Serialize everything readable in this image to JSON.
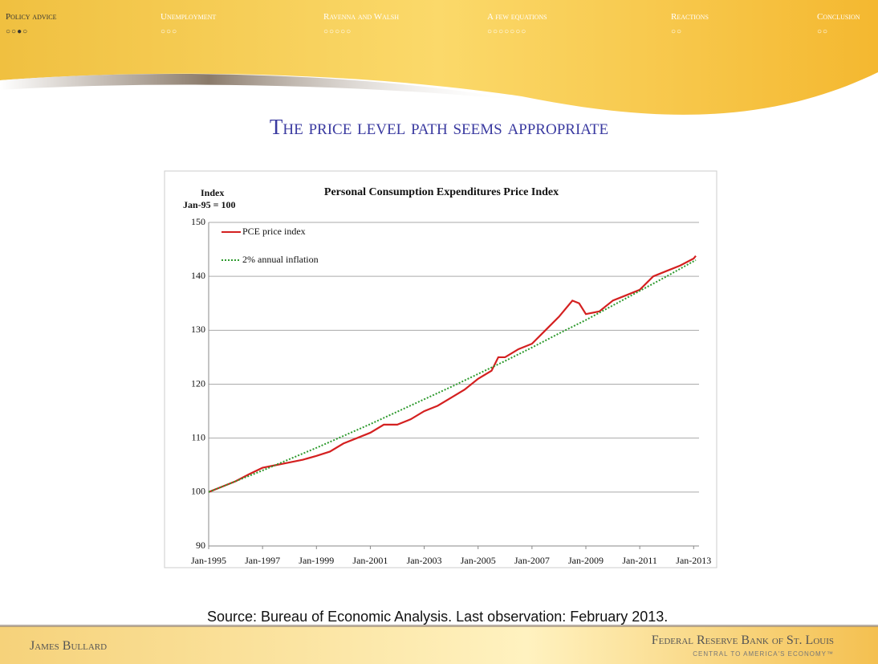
{
  "nav": [
    "Policy advice",
    "Unemployment",
    "Ravenna and Walsh",
    "A few equations",
    "Reactions",
    "Conclusion"
  ],
  "slide_title": "The price level path seems appropriate",
  "source": "Source: Bureau of Economic Analysis. Last observation: February 2013.",
  "footer": {
    "author": "James Bullard",
    "org": "Federal Reserve Bank of St. Louis",
    "tagline": "Central to America's Economy™"
  },
  "chart_data": {
    "type": "line",
    "title": "Personal Consumption Expenditures Price Index",
    "ylabel": [
      "Index",
      "Jan-95 = 100"
    ],
    "xlim": [
      1995,
      2013.2
    ],
    "ylim": [
      90,
      150
    ],
    "yticks": [
      90,
      100,
      110,
      120,
      130,
      140,
      150
    ],
    "xticks": [
      {
        "value": 1995,
        "label": "Jan-1995"
      },
      {
        "value": 1997,
        "label": "Jan-1997"
      },
      {
        "value": 1999,
        "label": "Jan-1999"
      },
      {
        "value": 2001,
        "label": "Jan-2001"
      },
      {
        "value": 2003,
        "label": "Jan-2003"
      },
      {
        "value": 2005,
        "label": "Jan-2005"
      },
      {
        "value": 2007,
        "label": "Jan-2007"
      },
      {
        "value": 2009,
        "label": "Jan-2009"
      },
      {
        "value": 2011,
        "label": "Jan-2011"
      },
      {
        "value": 2013,
        "label": "Jan-2013"
      }
    ],
    "grid": true,
    "series": [
      {
        "name": "PCE price index",
        "color": "#d42020",
        "dash": false,
        "x": [
          1995,
          1995.5,
          1996,
          1996.5,
          1997,
          1997.5,
          1998,
          1998.5,
          1999,
          1999.5,
          2000,
          2000.5,
          2001,
          2001.5,
          2002,
          2002.5,
          2003,
          2003.5,
          2004,
          2004.5,
          2005,
          2005.5,
          2005.75,
          2006,
          2006.5,
          2006.75,
          2007,
          2007.5,
          2008,
          2008.5,
          2008.75,
          2009,
          2009.5,
          2010,
          2010.5,
          2011,
          2011.5,
          2012,
          2012.5,
          2013,
          2013.08
        ],
        "values": [
          100,
          101,
          102,
          103.3,
          104.5,
          105,
          105.5,
          106,
          106.7,
          107.5,
          109,
          110,
          111,
          112.5,
          112.5,
          113.5,
          115,
          116,
          117.5,
          119,
          121,
          122.5,
          125,
          125,
          126.5,
          127,
          127.5,
          130,
          132.5,
          135.5,
          135,
          133,
          133.5,
          135.5,
          136.5,
          137.5,
          140,
          141,
          142,
          143.3,
          143.8
        ]
      },
      {
        "name": "2% annual inflation",
        "color": "#2e9a2e",
        "dash": true,
        "x": [
          1995,
          1996,
          1997,
          1998,
          1999,
          2000,
          2001,
          2002,
          2003,
          2004,
          2005,
          2006,
          2007,
          2008,
          2009,
          2010,
          2011,
          2012,
          2013,
          2013.08
        ],
        "values": [
          100,
          102,
          104,
          106.1,
          108.2,
          110.4,
          112.6,
          114.9,
          117.2,
          119.5,
          121.9,
          124.3,
          126.8,
          129.4,
          131.9,
          134.6,
          137.3,
          140,
          142.8,
          143
        ]
      }
    ]
  }
}
